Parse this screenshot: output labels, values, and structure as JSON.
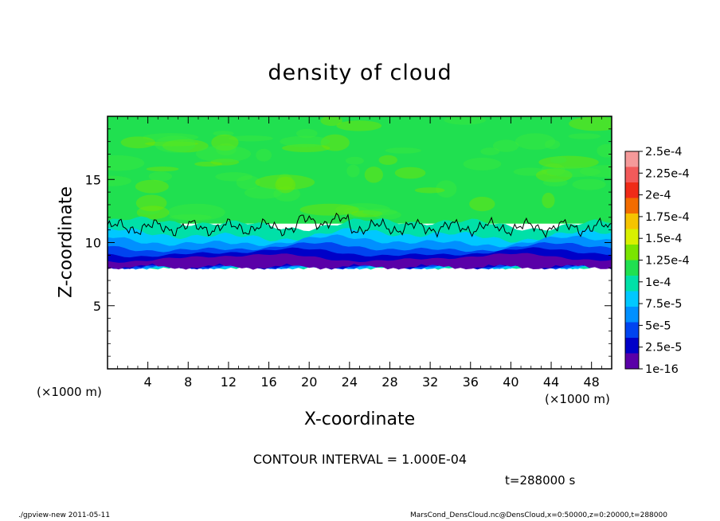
{
  "chart_data": {
    "type": "heatmap",
    "title": "density of cloud",
    "xlabel": "X-coordinate",
    "ylabel": "Z-coordinate",
    "x_unit_left": "(×1000 m)",
    "x_unit_right": "(×1000 m)",
    "xlim": [
      0,
      50
    ],
    "ylim": [
      0,
      20
    ],
    "x_ticks": [
      "4",
      "8",
      "12",
      "16",
      "20",
      "24",
      "28",
      "32",
      "36",
      "40",
      "44",
      "48"
    ],
    "y_ticks": [
      "5",
      "10",
      "15"
    ],
    "x_tick_values": [
      4,
      8,
      12,
      16,
      20,
      24,
      28,
      32,
      36,
      40,
      44,
      48
    ],
    "y_tick_values": [
      5,
      10,
      15
    ],
    "field": {
      "description_bands": [
        {
          "z_from": 8.2,
          "z_to": 8.8,
          "value": 1e-16
        },
        {
          "z_from": 8.8,
          "z_to": 9.2,
          "value": 2.5e-05
        },
        {
          "z_from": 9.2,
          "z_to": 9.8,
          "value": 5e-05
        },
        {
          "z_from": 9.8,
          "z_to": 10.5,
          "value": 7.5e-05
        },
        {
          "z_from": 10.5,
          "z_to": 11.5,
          "value": 0.0001
        },
        {
          "z_from": 11.5,
          "z_to": 20,
          "value": 0.000125
        }
      ],
      "contour_level": 0.0001,
      "contour_z_approx": 11.2
    },
    "colorbar": {
      "labels": [
        "2.5e-4",
        "2.25e-4",
        "2e-4",
        "1.75e-4",
        "1.5e-4",
        "1.25e-4",
        "1e-4",
        "7.5e-5",
        "5e-5",
        "2.5e-5",
        "1e-16"
      ],
      "colors": [
        "#f59a9a",
        "#f25a5a",
        "#ef2b18",
        "#f26c00",
        "#f5c400",
        "#d8f000",
        "#7ae400",
        "#20e050",
        "#00e0a8",
        "#00c8ff",
        "#0090ff",
        "#0044f0",
        "#0000c8",
        "#5a00a8"
      ]
    }
  },
  "texts": {
    "contour_interval": "CONTOUR INTERVAL = 1.000E-04",
    "time": "t=288000 s",
    "footer_left": "./gpview-new   2011-05-11",
    "footer_right": "MarsCond_DensCloud.nc@DensCloud,x=0:50000,z=0:20000,t=288000"
  }
}
